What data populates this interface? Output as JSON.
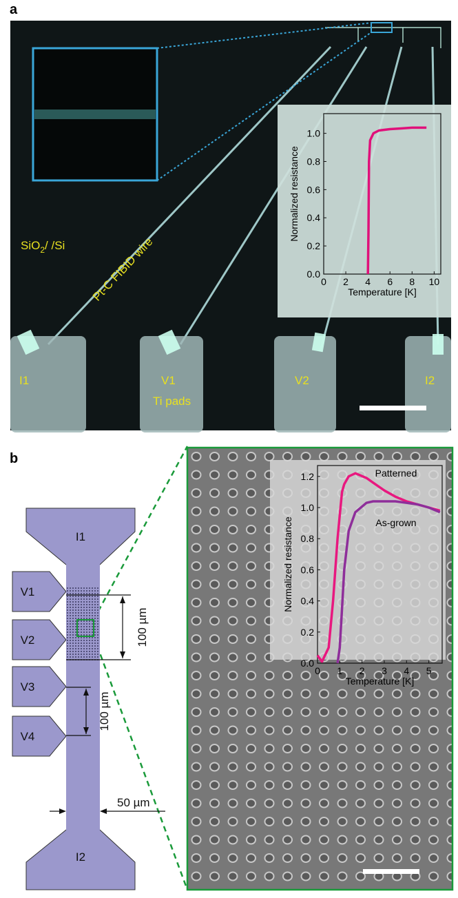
{
  "panel_a": {
    "label": "a",
    "substrate": {
      "main": "SiO",
      "sub": "2",
      "rest": "/ /Si"
    },
    "wire": "Pt-C FIBID wire",
    "pads": [
      "I1",
      "V1",
      "V2",
      "I2"
    ],
    "pads_note": "Ti pads"
  },
  "panel_b": {
    "label": "b",
    "pads": [
      "I1",
      "V1",
      "V2",
      "V3",
      "V4",
      "I2"
    ],
    "dim_upper": "100 µm",
    "dim_lower": "100 µm",
    "width": "50 µm"
  },
  "chart_data": [
    {
      "type": "line",
      "x_label": "Temperature [K]",
      "y_label": "Normalized resistance",
      "x": [
        4.0,
        4.05,
        4.1,
        4.2,
        4.5,
        5,
        6,
        7,
        8,
        9.3
      ],
      "series": [
        {
          "color": "#e0107a",
          "values": [
            0,
            0.3,
            0.8,
            0.95,
            1.0,
            1.02,
            1.03,
            1.035,
            1.04,
            1.04
          ]
        }
      ],
      "xlim": [
        0,
        10.6
      ],
      "xticks": [
        0,
        2,
        4,
        6,
        8,
        10
      ],
      "ylim": [
        0,
        1.14
      ],
      "yticks": [
        {
          "value": 0,
          "label": "0.0"
        },
        0.2,
        0.4,
        0.6,
        0.8,
        {
          "value": 1,
          "label": "1.0"
        }
      ]
    },
    {
      "type": "line",
      "x_label": "Temperature [K]",
      "y_label": "Normalized resistance",
      "x": [
        0,
        0.2,
        0.5,
        0.7,
        0.9,
        1.0,
        1.1,
        1.2,
        1.4,
        1.7,
        2.2,
        2.5,
        3,
        3.5,
        4,
        4.5,
        5,
        5.5
      ],
      "series": [
        {
          "name": "Patterned",
          "color": "#e8187f",
          "values": [
            0.05,
            0.01,
            0.1,
            0.4,
            0.8,
            0.95,
            1.1,
            1.15,
            1.2,
            1.22,
            1.19,
            1.16,
            1.11,
            1.07,
            1.04,
            1.02,
            1.0,
            0.98
          ]
        },
        {
          "name": "As-grown",
          "color": "#8e2e9a",
          "values": [
            null,
            null,
            null,
            null,
            0.0,
            0.1,
            0.35,
            0.6,
            0.85,
            0.97,
            1.03,
            1.04,
            1.04,
            1.04,
            1.03,
            1.02,
            1.0,
            0.97
          ]
        }
      ],
      "xlim": [
        0,
        5.6
      ],
      "xticks": [
        0,
        1,
        2,
        3,
        4,
        5
      ],
      "ylim": [
        0,
        1.27
      ],
      "yticks": [
        {
          "value": 0,
          "label": "0.0"
        },
        0.2,
        0.4,
        0.6,
        0.8,
        {
          "value": 1,
          "label": "1.0"
        },
        1.2
      ]
    }
  ]
}
